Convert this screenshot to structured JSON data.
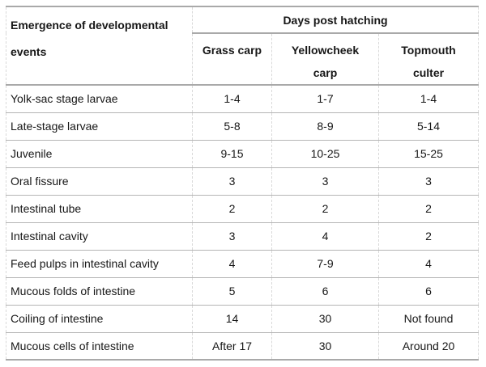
{
  "chart_data": {
    "type": "table",
    "corner_header": "Emergence of developmental events",
    "group_header": "Days post hatching",
    "columns": [
      "Grass carp",
      "Yellowcheek carp",
      "Topmouth culter"
    ],
    "rows": [
      {
        "label": "Yolk-sac stage larvae",
        "values": [
          "1-4",
          "1-7",
          "1-4"
        ]
      },
      {
        "label": "Late-stage larvae",
        "values": [
          "5-8",
          "8-9",
          "5-14"
        ]
      },
      {
        "label": "Juvenile",
        "values": [
          "9-15",
          "10-25",
          "15-25"
        ]
      },
      {
        "label": "Oral fissure",
        "values": [
          "3",
          "3",
          "3"
        ]
      },
      {
        "label": "Intestinal tube",
        "values": [
          "2",
          "2",
          "2"
        ]
      },
      {
        "label": "Intestinal cavity",
        "values": [
          "3",
          "4",
          "2"
        ]
      },
      {
        "label": "Feed pulps in intestinal cavity",
        "values": [
          "4",
          "7-9",
          "4"
        ]
      },
      {
        "label": "Mucous folds of intestine",
        "values": [
          "5",
          "6",
          "6"
        ]
      },
      {
        "label": "Coiling of intestine",
        "values": [
          "14",
          "30",
          "Not found"
        ]
      },
      {
        "label": "Mucous cells of intestine",
        "values": [
          "After 17",
          "30",
          "Around 20"
        ]
      }
    ]
  },
  "colors": {
    "background": "#ffffff",
    "text": "#171717",
    "strong_line": "#a9a9a9",
    "row_line": "#b5b5b5",
    "dashed_grid_line": "#d9d9d9"
  }
}
